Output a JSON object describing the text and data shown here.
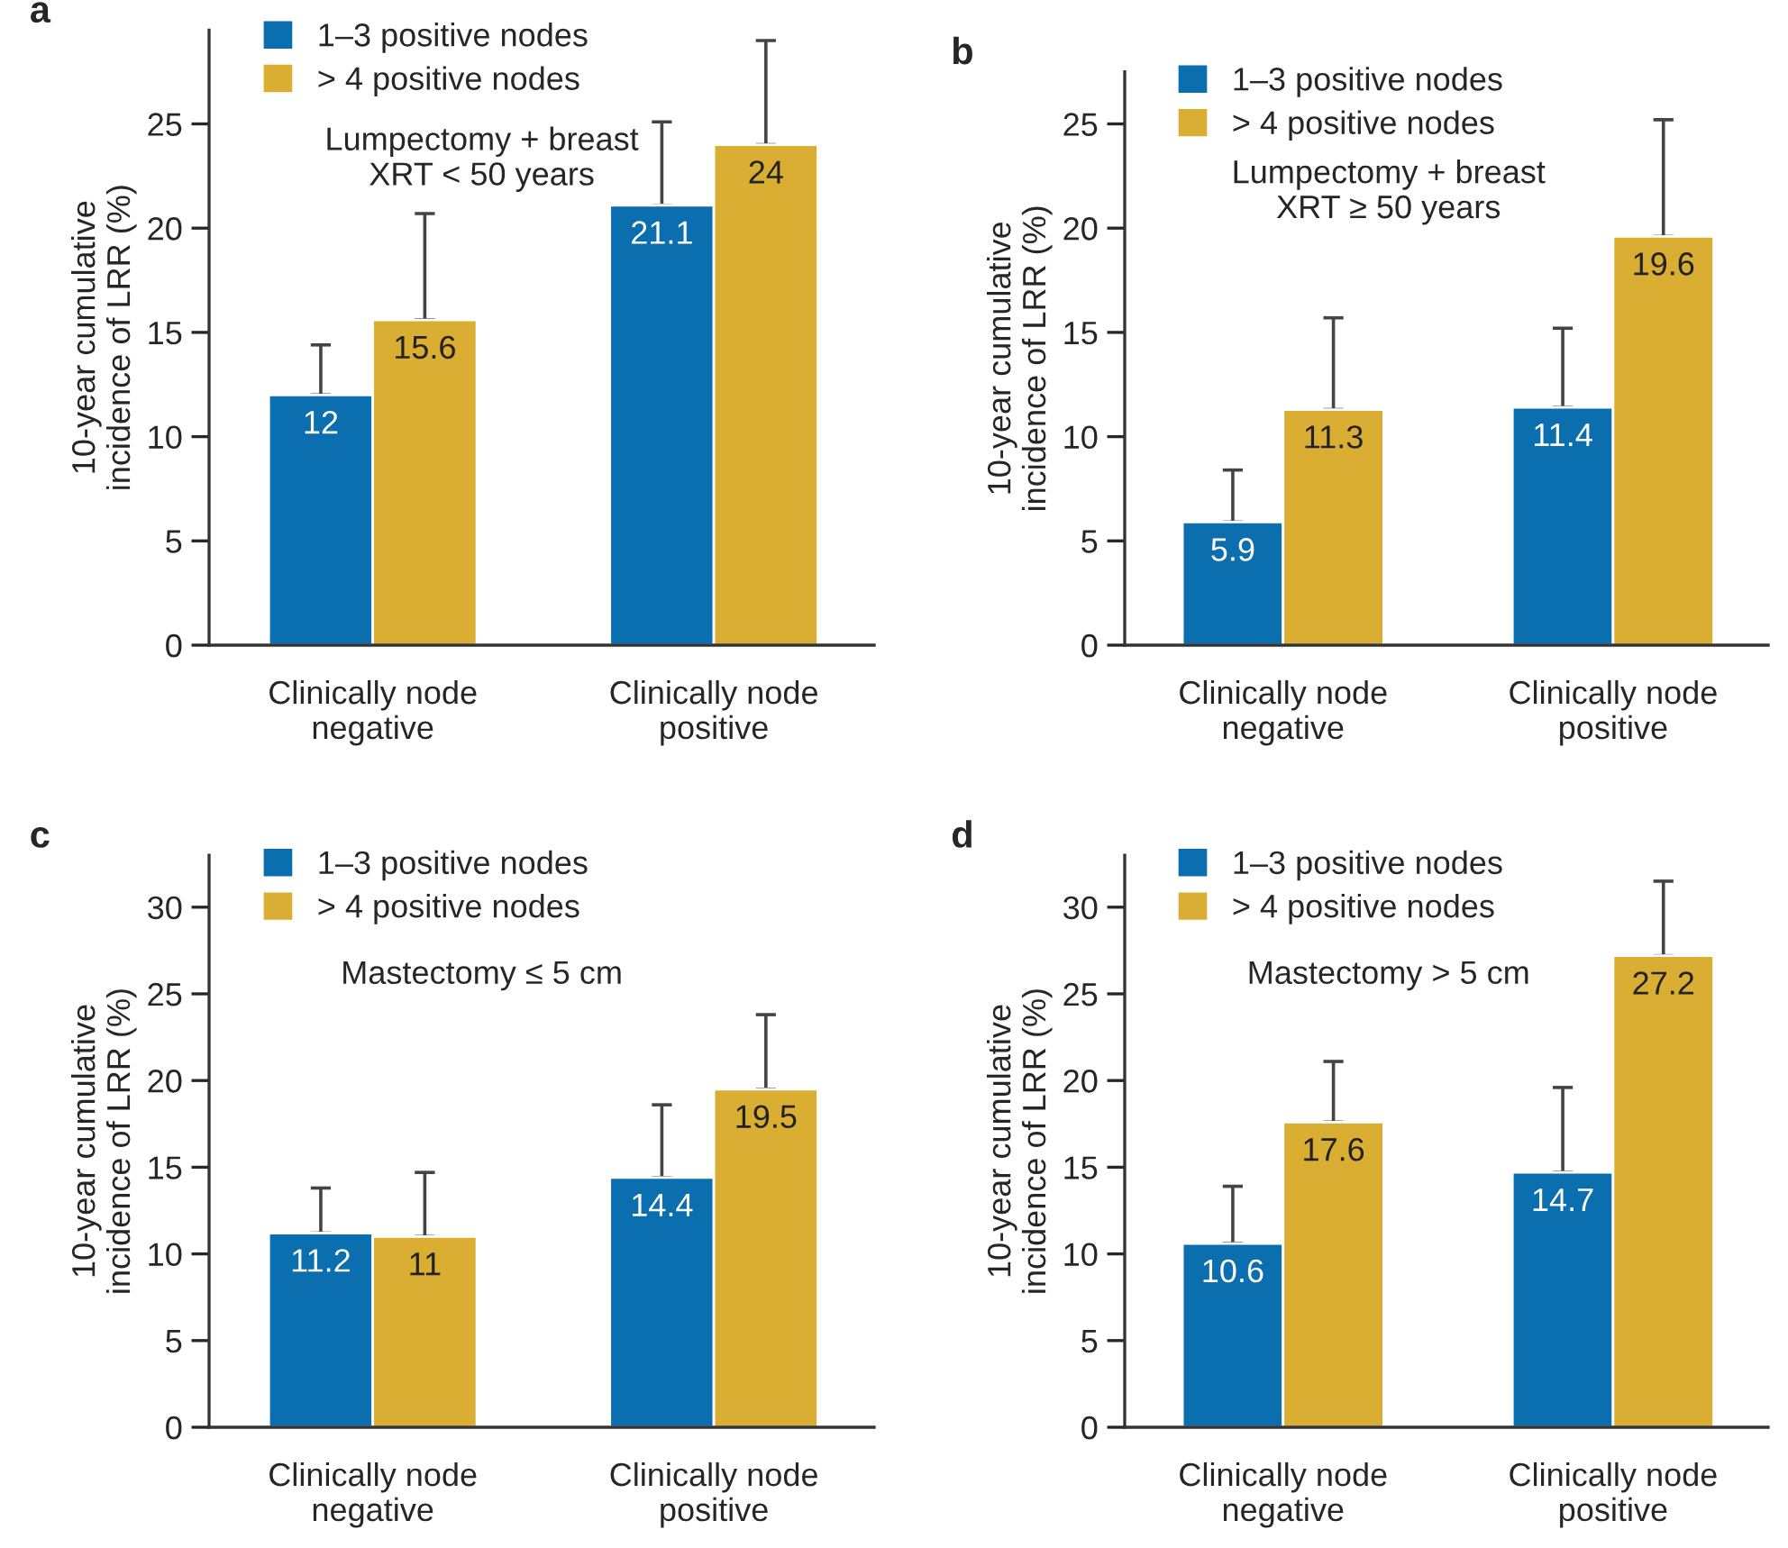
{
  "chart_data": [
    {
      "type": "bar",
      "title": "a",
      "subtitle": "Lumpectomy + breast\nXRT < 50 years",
      "ylabel": "10-year cumulative\nincidence of LRR (%)",
      "categories": [
        "Clinically node\nnegative",
        "Clinically node\npositive"
      ],
      "series": [
        {
          "name": "1–3 positive nodes",
          "color": "#0a6eaf",
          "values": [
            12,
            21.1
          ],
          "errors": [
            [
              12,
              14.4
            ],
            [
              21.1,
              25.1
            ]
          ]
        },
        {
          "name": "> 4 positive nodes",
          "color": "#d9ae32",
          "values": [
            15.6,
            24
          ],
          "errors": [
            [
              15.6,
              20.7
            ],
            [
              24,
              29.0
            ]
          ]
        }
      ],
      "ylim": [
        0,
        29.5
      ],
      "yticks": [
        0,
        5,
        10,
        15,
        20,
        25
      ],
      "data_labels": true,
      "legend": "top left",
      "grid": false
    },
    {
      "type": "bar",
      "title": "b",
      "subtitle": "Lumpectomy + breast\nXRT ≥ 50 years",
      "ylabel": "10-year cumulative\nincidence of LRR (%)",
      "categories": [
        "Clinically node\nnegative",
        "Clinically node\npositive"
      ],
      "series": [
        {
          "name": "1–3 positive nodes",
          "color": "#0a6eaf",
          "values": [
            5.9,
            11.4
          ],
          "errors": [
            [
              5.9,
              8.4
            ],
            [
              11.4,
              15.2
            ]
          ]
        },
        {
          "name": "> 4 positive nodes",
          "color": "#d9ae32",
          "values": [
            11.3,
            19.6
          ],
          "errors": [
            [
              11.3,
              15.7
            ],
            [
              19.6,
              25.2
            ]
          ]
        }
      ],
      "ylim": [
        0,
        27.5
      ],
      "yticks": [
        0,
        5,
        10,
        15,
        20,
        25
      ],
      "data_labels": true,
      "legend": "top left",
      "grid": false
    },
    {
      "type": "bar",
      "title": "c",
      "subtitle": "Mastectomy ≤ 5 cm",
      "ylabel": "10-year cumulative\nincidence of LRR (%)",
      "categories": [
        "Clinically node\nnegative",
        "Clinically node\npositive"
      ],
      "series": [
        {
          "name": "1–3 positive nodes",
          "color": "#0a6eaf",
          "values": [
            11.2,
            14.4
          ],
          "errors": [
            [
              11.2,
              13.8
            ],
            [
              14.4,
              18.6
            ]
          ]
        },
        {
          "name": "> 4 positive nodes",
          "color": "#d9ae32",
          "values": [
            11,
            19.5
          ],
          "errors": [
            [
              11,
              14.7
            ],
            [
              19.5,
              23.8
            ]
          ]
        }
      ],
      "ylim": [
        0,
        33
      ],
      "yticks": [
        0,
        5,
        10,
        15,
        20,
        25,
        30
      ],
      "data_labels": true,
      "legend": "top left",
      "grid": false
    },
    {
      "type": "bar",
      "title": "d",
      "subtitle": "Mastectomy > 5 cm",
      "ylabel": "10-year cumulative\nincidence of LRR (%)",
      "categories": [
        "Clinically node\nnegative",
        "Clinically node\npositive"
      ],
      "series": [
        {
          "name": "1–3 positive nodes",
          "color": "#0a6eaf",
          "values": [
            10.6,
            14.7
          ],
          "errors": [
            [
              10.6,
              13.9
            ],
            [
              14.7,
              19.6
            ]
          ]
        },
        {
          "name": "> 4 positive nodes",
          "color": "#d9ae32",
          "values": [
            17.6,
            27.2
          ],
          "errors": [
            [
              17.6,
              21.1
            ],
            [
              27.2,
              31.5
            ]
          ]
        }
      ],
      "ylim": [
        0,
        33
      ],
      "yticks": [
        0,
        5,
        10,
        15,
        20,
        25,
        30
      ],
      "data_labels": true,
      "legend": "top left",
      "grid": false
    }
  ]
}
